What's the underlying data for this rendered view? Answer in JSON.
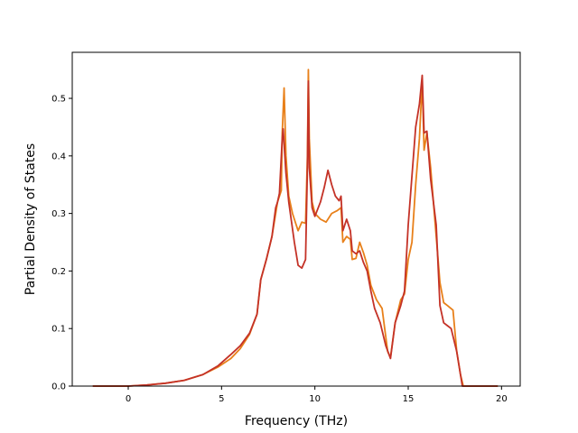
{
  "chart_data": {
    "type": "line",
    "title": "",
    "xlabel": "Frequency (THz)",
    "ylabel": "Partial Density of States",
    "xlim": [
      -3.0,
      21.0
    ],
    "ylim": [
      0.0,
      0.58
    ],
    "xticks": [
      0,
      5,
      10,
      15,
      20
    ],
    "yticks": [
      0.0,
      0.1,
      0.2,
      0.3,
      0.4,
      0.5
    ],
    "xtick_labels": [
      "0",
      "5",
      "10",
      "15",
      "20"
    ],
    "ytick_labels": [
      "0.0",
      "0.1",
      "0.2",
      "0.3",
      "0.4",
      "0.5"
    ],
    "grid": false,
    "legend": false,
    "series": [
      {
        "color": "#e8801a",
        "points": [
          [
            -1.9,
            0.0
          ],
          [
            0.0,
            0.0
          ],
          [
            1.0,
            0.002
          ],
          [
            2.0,
            0.005
          ],
          [
            3.0,
            0.01
          ],
          [
            4.0,
            0.02
          ],
          [
            4.8,
            0.033
          ],
          [
            5.5,
            0.048
          ],
          [
            6.0,
            0.065
          ],
          [
            6.5,
            0.09
          ],
          [
            6.9,
            0.125
          ],
          [
            7.1,
            0.185
          ],
          [
            7.4,
            0.22
          ],
          [
            7.7,
            0.26
          ],
          [
            7.9,
            0.3
          ],
          [
            8.0,
            0.32
          ],
          [
            8.2,
            0.34
          ],
          [
            8.25,
            0.44
          ],
          [
            8.35,
            0.518
          ],
          [
            8.45,
            0.4
          ],
          [
            8.6,
            0.33
          ],
          [
            8.8,
            0.3
          ],
          [
            9.0,
            0.28
          ],
          [
            9.1,
            0.27
          ],
          [
            9.3,
            0.285
          ],
          [
            9.5,
            0.283
          ],
          [
            9.6,
            0.4
          ],
          [
            9.65,
            0.55
          ],
          [
            9.7,
            0.43
          ],
          [
            9.85,
            0.32
          ],
          [
            10.0,
            0.3
          ],
          [
            10.3,
            0.29
          ],
          [
            10.6,
            0.285
          ],
          [
            10.9,
            0.3
          ],
          [
            11.2,
            0.305
          ],
          [
            11.4,
            0.31
          ],
          [
            11.5,
            0.25
          ],
          [
            11.7,
            0.26
          ],
          [
            11.9,
            0.255
          ],
          [
            12.0,
            0.22
          ],
          [
            12.2,
            0.222
          ],
          [
            12.4,
            0.25
          ],
          [
            12.6,
            0.232
          ],
          [
            12.8,
            0.21
          ],
          [
            13.0,
            0.175
          ],
          [
            13.3,
            0.15
          ],
          [
            13.6,
            0.135
          ],
          [
            13.9,
            0.06
          ],
          [
            14.05,
            0.05
          ],
          [
            14.3,
            0.11
          ],
          [
            14.6,
            0.15
          ],
          [
            14.8,
            0.16
          ],
          [
            15.0,
            0.22
          ],
          [
            15.2,
            0.25
          ],
          [
            15.4,
            0.35
          ],
          [
            15.6,
            0.43
          ],
          [
            15.75,
            0.53
          ],
          [
            15.85,
            0.41
          ],
          [
            16.0,
            0.44
          ],
          [
            16.2,
            0.38
          ],
          [
            16.4,
            0.3
          ],
          [
            16.7,
            0.18
          ],
          [
            16.9,
            0.145
          ],
          [
            17.1,
            0.14
          ],
          [
            17.4,
            0.132
          ],
          [
            17.6,
            0.06
          ],
          [
            17.8,
            0.02
          ],
          [
            17.95,
            0.0
          ],
          [
            19.8,
            0.0
          ]
        ]
      },
      {
        "color": "#c43227",
        "points": [
          [
            -1.9,
            0.0
          ],
          [
            0.0,
            0.0
          ],
          [
            1.0,
            0.002
          ],
          [
            2.0,
            0.005
          ],
          [
            3.0,
            0.01
          ],
          [
            4.0,
            0.02
          ],
          [
            4.8,
            0.035
          ],
          [
            5.5,
            0.055
          ],
          [
            6.0,
            0.07
          ],
          [
            6.5,
            0.092
          ],
          [
            6.9,
            0.125
          ],
          [
            7.1,
            0.185
          ],
          [
            7.4,
            0.22
          ],
          [
            7.7,
            0.26
          ],
          [
            7.9,
            0.31
          ],
          [
            8.0,
            0.32
          ],
          [
            8.1,
            0.335
          ],
          [
            8.25,
            0.43
          ],
          [
            8.3,
            0.447
          ],
          [
            8.45,
            0.37
          ],
          [
            8.6,
            0.32
          ],
          [
            8.9,
            0.25
          ],
          [
            9.1,
            0.21
          ],
          [
            9.3,
            0.205
          ],
          [
            9.5,
            0.22
          ],
          [
            9.6,
            0.38
          ],
          [
            9.65,
            0.53
          ],
          [
            9.7,
            0.38
          ],
          [
            9.85,
            0.31
          ],
          [
            10.0,
            0.295
          ],
          [
            10.3,
            0.32
          ],
          [
            10.5,
            0.345
          ],
          [
            10.7,
            0.375
          ],
          [
            10.9,
            0.35
          ],
          [
            11.1,
            0.33
          ],
          [
            11.3,
            0.322
          ],
          [
            11.4,
            0.33
          ],
          [
            11.5,
            0.27
          ],
          [
            11.7,
            0.29
          ],
          [
            11.9,
            0.27
          ],
          [
            12.0,
            0.235
          ],
          [
            12.2,
            0.23
          ],
          [
            12.4,
            0.235
          ],
          [
            12.6,
            0.215
          ],
          [
            12.8,
            0.2
          ],
          [
            13.0,
            0.165
          ],
          [
            13.2,
            0.135
          ],
          [
            13.5,
            0.11
          ],
          [
            13.8,
            0.07
          ],
          [
            14.05,
            0.048
          ],
          [
            14.3,
            0.11
          ],
          [
            14.6,
            0.14
          ],
          [
            14.8,
            0.165
          ],
          [
            15.0,
            0.28
          ],
          [
            15.2,
            0.365
          ],
          [
            15.4,
            0.45
          ],
          [
            15.6,
            0.49
          ],
          [
            15.75,
            0.54
          ],
          [
            15.85,
            0.44
          ],
          [
            16.0,
            0.443
          ],
          [
            16.2,
            0.36
          ],
          [
            16.5,
            0.28
          ],
          [
            16.7,
            0.14
          ],
          [
            16.9,
            0.11
          ],
          [
            17.1,
            0.105
          ],
          [
            17.3,
            0.1
          ],
          [
            17.6,
            0.06
          ],
          [
            17.8,
            0.02
          ],
          [
            17.9,
            0.0
          ],
          [
            19.8,
            0.0
          ]
        ]
      }
    ]
  }
}
